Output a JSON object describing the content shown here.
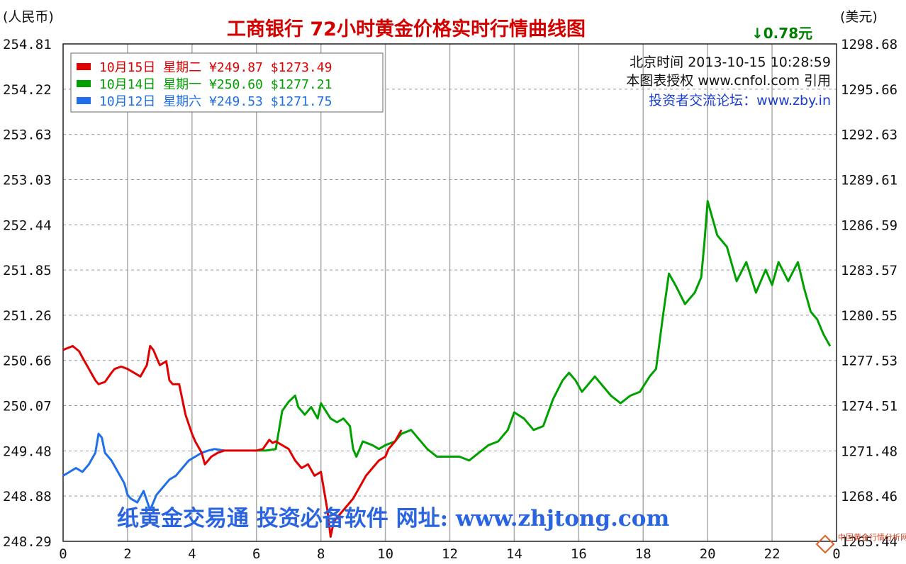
{
  "header": {
    "title": "工商银行  72小时黄金价格实时行情曲线图",
    "unit_left": "(人民币)",
    "unit_right": "(美元)",
    "change": "↓0.78元",
    "info_time": "北京时间 2013-10-15 10:28:59",
    "info_cite": "本图表授权 www.cnfol.com 引用",
    "info_forum": "投资者交流论坛：www.zby.in"
  },
  "watermark": "纸黄金交易通  投资必备软件  网址: www.zhjtong.com",
  "corner_mark": "中国黄金行情分析网",
  "colors": {
    "day15": "#e00000",
    "day14": "#00a000",
    "day12": "#1e6fe8",
    "grid": "#999999",
    "title": "#d40000"
  },
  "legend": [
    {
      "label": "10月15日  星期二  ¥249.87  $1273.49",
      "color": "#e00000"
    },
    {
      "label": "10月14日  星期一  ¥250.60  $1277.21",
      "color": "#00a000"
    },
    {
      "label": "10月12日  星期六  ¥249.53  $1271.75",
      "color": "#1e6fe8"
    }
  ],
  "chart_data": {
    "type": "line",
    "title": "工商银行  72小时黄金价格实时行情曲线图",
    "ylabel": "(人民币)",
    "y2label": "(美元)",
    "xlim": [
      0,
      24
    ],
    "ylim": [
      248.29,
      254.81
    ],
    "y2lim": [
      1265.44,
      1298.68
    ],
    "x_ticks": [
      "0",
      "2",
      "4",
      "6",
      "8",
      "10",
      "12",
      "14",
      "16",
      "18",
      "20",
      "22",
      "0"
    ],
    "y_ticks": [
      "254.81",
      "254.22",
      "253.63",
      "253.03",
      "252.44",
      "251.85",
      "251.26",
      "250.66",
      "250.07",
      "249.48",
      "248.88",
      "248.29"
    ],
    "y2_ticks": [
      "1298.68",
      "1295.66",
      "1292.63",
      "1289.61",
      "1286.59",
      "1283.57",
      "1280.55",
      "1277.53",
      "1274.51",
      "1271.48",
      "1268.46",
      "1265.44"
    ],
    "grid": true,
    "legend_position": "top-left",
    "series": [
      {
        "name": "10月15日",
        "x": [
          0,
          0.3,
          0.5,
          0.6,
          0.8,
          1.0,
          1.1,
          1.3,
          1.5,
          1.6,
          1.8,
          2.0,
          2.2,
          2.4,
          2.6,
          2.7,
          2.8,
          3.0,
          3.2,
          3.3,
          3.4,
          3.6,
          3.8,
          4.0,
          4.1,
          4.3,
          4.4,
          4.6,
          4.8,
          5.0,
          5.5,
          6.0,
          6.2,
          6.4,
          6.5,
          6.6,
          6.8,
          7.0,
          7.2,
          7.4,
          7.6,
          7.8,
          8.0,
          8.2,
          8.3,
          8.4,
          8.5,
          8.7,
          8.9,
          9.0,
          9.2,
          9.4,
          9.6,
          9.8,
          10.0,
          10.1,
          10.3,
          10.5
        ],
        "values": [
          250.8,
          250.85,
          250.78,
          250.7,
          250.55,
          250.4,
          250.35,
          250.38,
          250.5,
          250.55,
          250.58,
          250.55,
          250.5,
          250.45,
          250.6,
          250.85,
          250.8,
          250.6,
          250.65,
          250.4,
          250.35,
          250.35,
          249.95,
          249.7,
          249.6,
          249.45,
          249.3,
          249.4,
          249.45,
          249.48,
          249.48,
          249.48,
          249.5,
          249.62,
          249.58,
          249.6,
          249.55,
          249.5,
          249.35,
          249.25,
          249.3,
          249.15,
          249.2,
          248.7,
          248.35,
          248.55,
          248.6,
          248.7,
          248.8,
          248.85,
          249.0,
          249.15,
          249.25,
          249.35,
          249.4,
          249.5,
          249.6,
          249.75
        ]
      },
      {
        "name": "10月14日",
        "x": [
          6.0,
          6.3,
          6.6,
          6.8,
          7.0,
          7.2,
          7.3,
          7.5,
          7.7,
          7.9,
          8.0,
          8.3,
          8.5,
          8.7,
          8.9,
          9.0,
          9.1,
          9.3,
          9.6,
          9.8,
          10.0,
          10.3,
          10.5,
          10.8,
          11.0,
          11.3,
          11.6,
          12.0,
          12.3,
          12.6,
          12.9,
          13.2,
          13.5,
          13.8,
          14.0,
          14.3,
          14.6,
          14.9,
          15.2,
          15.5,
          15.7,
          15.9,
          16.1,
          16.3,
          16.5,
          16.8,
          17.0,
          17.3,
          17.6,
          17.9,
          18.2,
          18.4,
          18.6,
          18.8,
          19.0,
          19.3,
          19.6,
          19.8,
          19.9,
          20.0,
          20.1,
          20.3,
          20.6,
          20.9,
          21.2,
          21.5,
          21.8,
          22.0,
          22.2,
          22.5,
          22.8,
          23.0,
          23.2,
          23.4,
          23.6,
          23.8
        ],
        "values": [
          249.48,
          249.48,
          249.5,
          250.0,
          250.12,
          250.2,
          250.05,
          249.95,
          250.05,
          249.9,
          250.1,
          249.9,
          249.85,
          249.9,
          249.8,
          249.5,
          249.4,
          249.6,
          249.55,
          249.5,
          249.55,
          249.6,
          249.7,
          249.75,
          249.65,
          249.5,
          249.4,
          249.4,
          249.4,
          249.35,
          249.45,
          249.55,
          249.6,
          249.75,
          249.98,
          249.9,
          249.75,
          249.8,
          250.15,
          250.4,
          250.5,
          250.4,
          250.25,
          250.35,
          250.45,
          250.3,
          250.2,
          250.1,
          250.2,
          250.25,
          250.45,
          250.55,
          251.2,
          251.8,
          251.65,
          251.4,
          251.55,
          251.75,
          252.2,
          252.75,
          252.6,
          252.3,
          252.15,
          251.7,
          251.95,
          251.55,
          251.85,
          251.65,
          251.95,
          251.7,
          251.95,
          251.6,
          251.3,
          251.2,
          251.0,
          250.85
        ]
      },
      {
        "name": "10月12日",
        "x": [
          0,
          0.2,
          0.4,
          0.6,
          0.8,
          1.0,
          1.1,
          1.2,
          1.3,
          1.5,
          1.7,
          1.9,
          2.0,
          2.1,
          2.3,
          2.5,
          2.7,
          2.9,
          3.1,
          3.3,
          3.5,
          3.7,
          3.9,
          4.1,
          4.3,
          4.5,
          4.7,
          5.0
        ],
        "values": [
          249.15,
          249.2,
          249.25,
          249.2,
          249.3,
          249.45,
          249.7,
          249.65,
          249.45,
          249.35,
          249.2,
          249.05,
          248.9,
          248.85,
          248.8,
          248.95,
          248.7,
          248.9,
          249.0,
          249.1,
          249.15,
          249.25,
          249.35,
          249.4,
          249.45,
          249.48,
          249.5,
          249.48
        ]
      }
    ]
  }
}
